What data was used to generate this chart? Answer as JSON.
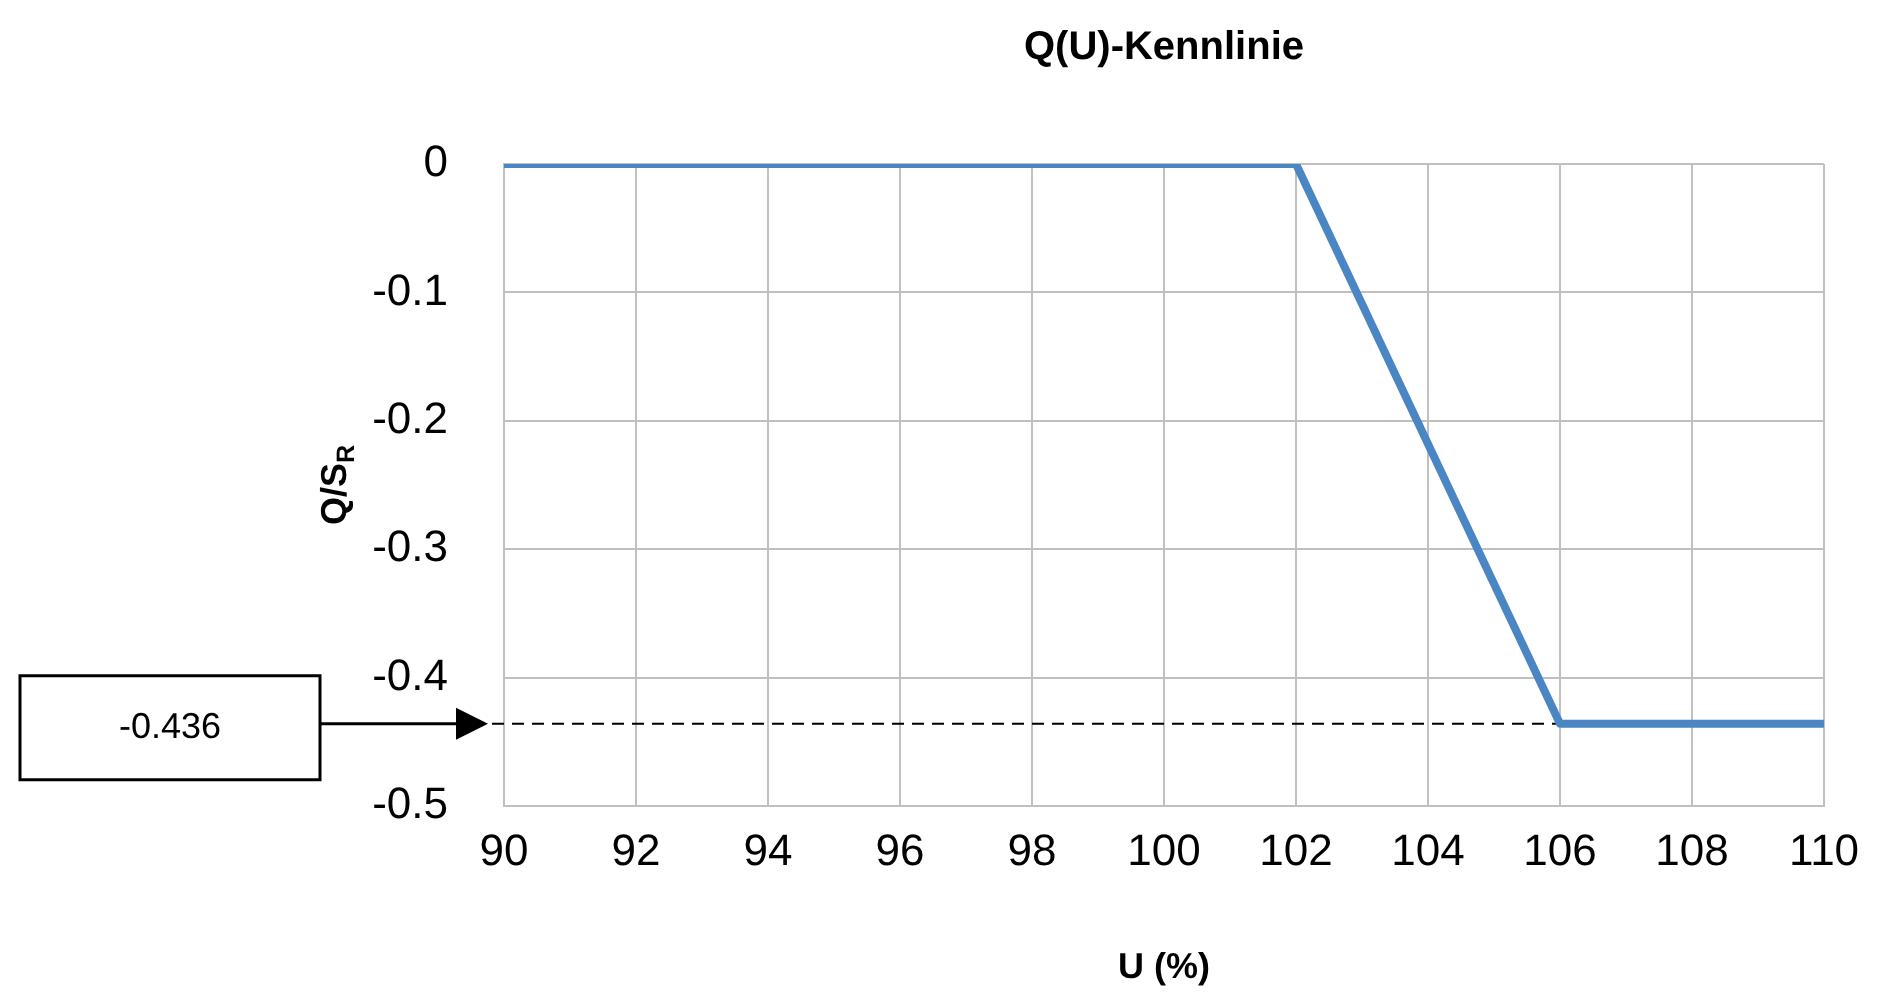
{
  "chart_data": {
    "type": "line",
    "title": "Q(U)-Kennlinie",
    "xlabel": "U (%)",
    "ylabel": "Q/S$_{R}$",
    "x": [
      90,
      102,
      106,
      110
    ],
    "series": [
      {
        "color": "#4a86c4",
        "values": [
          0,
          0,
          -0.436,
          -0.436
        ]
      }
    ],
    "xlim": [
      90,
      110
    ],
    "xticks": [
      90,
      92,
      94,
      96,
      98,
      100,
      102,
      104,
      106,
      108,
      110
    ],
    "ylim": [
      -0.5,
      0
    ],
    "yticks": [
      0,
      -0.1,
      -0.2,
      -0.3,
      -0.4,
      -0.5
    ],
    "ref_lines": [
      {
        "axis": "y",
        "value": -0.436,
        "label": "-0.436",
        "color": "#000000",
        "line_style": "dashed"
      }
    ],
    "grid": true,
    "legend": false,
    "marker": "none",
    "line_style": "solid"
  }
}
